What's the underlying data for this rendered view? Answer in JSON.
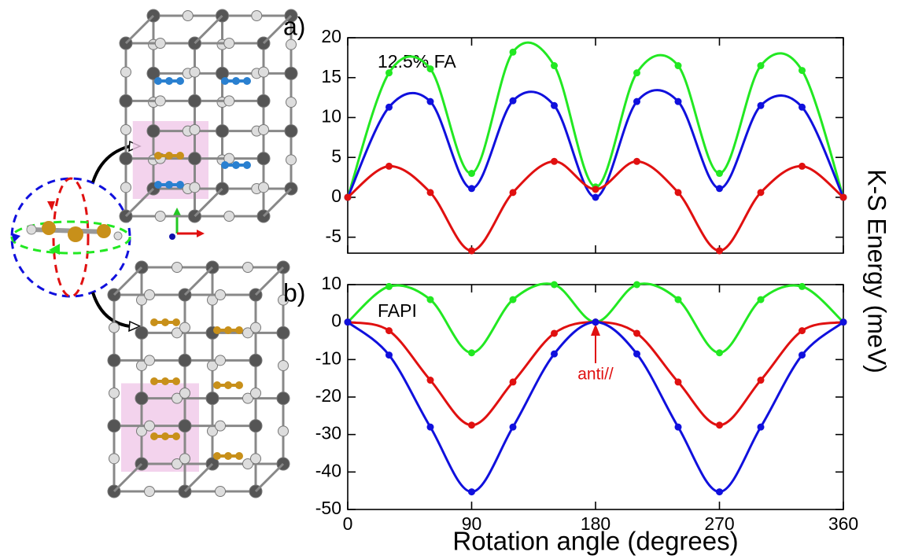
{
  "chart_data": [
    {
      "type": "line",
      "label": "a)",
      "annotation": "12.5% FA",
      "x": [
        0,
        30,
        60,
        90,
        120,
        150,
        180,
        210,
        240,
        270,
        300,
        330,
        360
      ],
      "xlim": [
        0,
        360
      ],
      "xticks": [
        0,
        90,
        180,
        270,
        360
      ],
      "ylim": [
        -7,
        20
      ],
      "yticks": [
        -5,
        0,
        5,
        10,
        15,
        20
      ],
      "series": [
        {
          "color": "#22e822",
          "values": [
            0,
            15.6,
            16.1,
            3.0,
            18.2,
            16.5,
            1.3,
            15.6,
            16.5,
            3.0,
            16.5,
            15.9,
            0
          ]
        },
        {
          "color": "#1010dd",
          "values": [
            0,
            11.3,
            12.0,
            1.1,
            12.1,
            11.5,
            0,
            12.0,
            12.0,
            1.1,
            11.5,
            11.3,
            0
          ]
        },
        {
          "color": "#e01010",
          "values": [
            0,
            3.9,
            0.6,
            -6.7,
            0.6,
            4.5,
            1.0,
            4.5,
            0.6,
            -6.7,
            0.6,
            3.9,
            0
          ]
        }
      ]
    },
    {
      "type": "line",
      "label": "b)",
      "annotation": "FAPI",
      "arrow_annotation": "anti//",
      "xlabel": "Rotation angle (degrees)",
      "x": [
        0,
        30,
        60,
        90,
        120,
        150,
        180,
        210,
        240,
        270,
        300,
        330,
        360
      ],
      "xlim": [
        0,
        360
      ],
      "xticks": [
        0,
        90,
        180,
        270,
        360
      ],
      "ylim": [
        -50,
        10
      ],
      "yticks": [
        -50,
        -40,
        -30,
        -20,
        -10,
        0,
        10
      ],
      "series": [
        {
          "color": "#22e822",
          "values": [
            0,
            9.5,
            6,
            -8.2,
            6,
            10,
            0,
            10,
            6,
            -8.2,
            6,
            9.5,
            0
          ]
        },
        {
          "color": "#e01010",
          "values": [
            0,
            -2.3,
            -15.5,
            -27.5,
            -16,
            -3,
            0,
            -3,
            -16,
            -27.5,
            -15.5,
            -2.3,
            0
          ]
        },
        {
          "color": "#1010dd",
          "values": [
            0,
            -8.8,
            -28,
            -45.3,
            -28,
            -8.5,
            0,
            -8.5,
            -28,
            -45.3,
            -28,
            -8.8,
            0
          ]
        }
      ]
    }
  ],
  "figure": {
    "ylabel": "K-S Energy (meV)"
  }
}
